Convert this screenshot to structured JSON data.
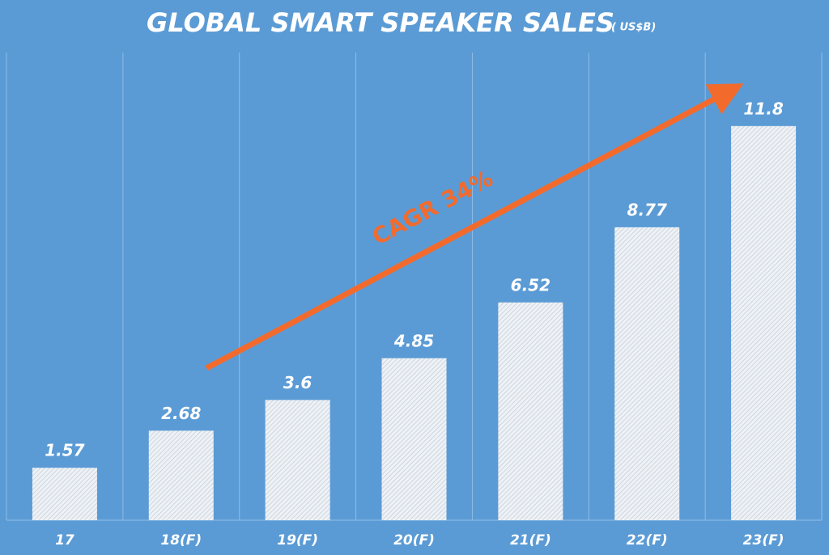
{
  "chart_data": {
    "type": "bar",
    "title": "GLOBAL SMART SPEAKER SALES",
    "subtitle": "( US$B)",
    "categories": [
      "17",
      "18(F)",
      "19(F)",
      "20(F)",
      "21(F)",
      "22(F)",
      "23(F)"
    ],
    "values": [
      1.57,
      2.68,
      3.6,
      4.85,
      6.52,
      8.77,
      11.8
    ],
    "ylim": [
      0,
      14
    ],
    "annotation": "CAGR 34%"
  }
}
